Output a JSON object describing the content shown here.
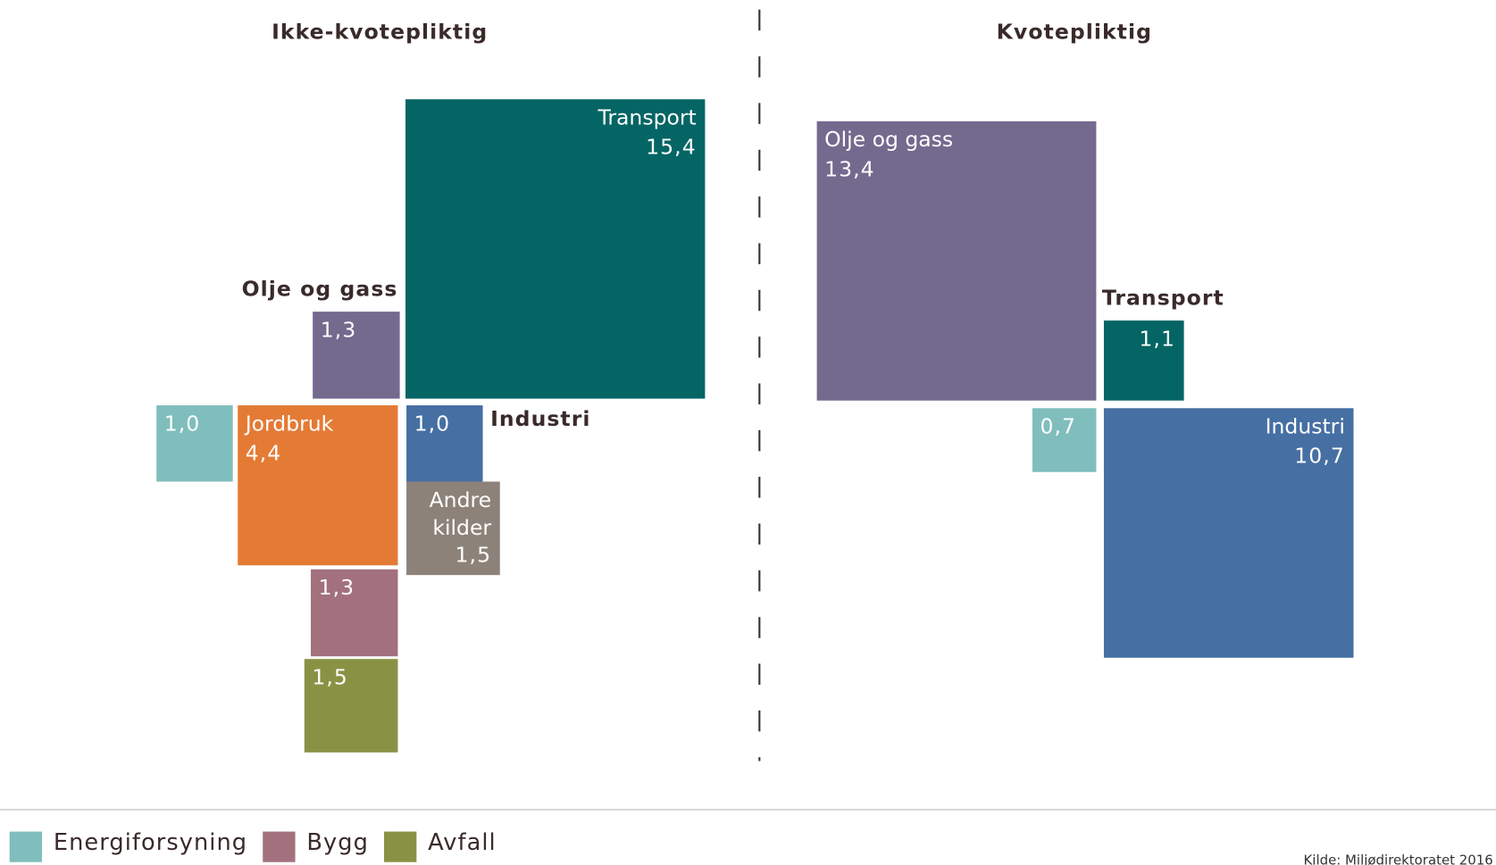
{
  "chart_data": [
    {
      "type": "square",
      "title": "Ikke-kvotepliktig",
      "categories": [
        "Transport",
        "Olje og gass",
        null,
        "Jordbruk",
        "Industri",
        "Andre kilder",
        null,
        null
      ],
      "values": [
        15.4,
        1.3,
        1.0,
        4.4,
        1.0,
        1.5,
        1.3,
        1.5
      ],
      "value_labels": [
        "15,4",
        "1,3",
        "1,0",
        "4,4",
        "1,0",
        "1,5",
        "1,3",
        "1,5"
      ],
      "colors": [
        "#046564",
        "#736a8e",
        "#7fbebc",
        "#e47b35",
        "#466fa3",
        "#8d8279",
        "#a3707e",
        "#899244"
      ]
    },
    {
      "type": "square",
      "title": "Kvotepliktig",
      "categories": [
        "Olje og gass",
        "Transport",
        null,
        "Industri"
      ],
      "values": [
        13.4,
        1.1,
        0.7,
        10.7
      ],
      "value_labels": [
        "13,4",
        "1,1",
        "0,7",
        "10,7"
      ],
      "colors": [
        "#736a8e",
        "#046564",
        "#7fbebc",
        "#466fa3"
      ]
    }
  ],
  "legend": [
    {
      "name": "Energiforsyning",
      "color": "#7fbebc"
    },
    {
      "name": "Bygg",
      "color": "#a3707e"
    },
    {
      "name": "Avfall",
      "color": "#899244"
    }
  ],
  "source": "Kilde: Miljødirektoratet 2016"
}
